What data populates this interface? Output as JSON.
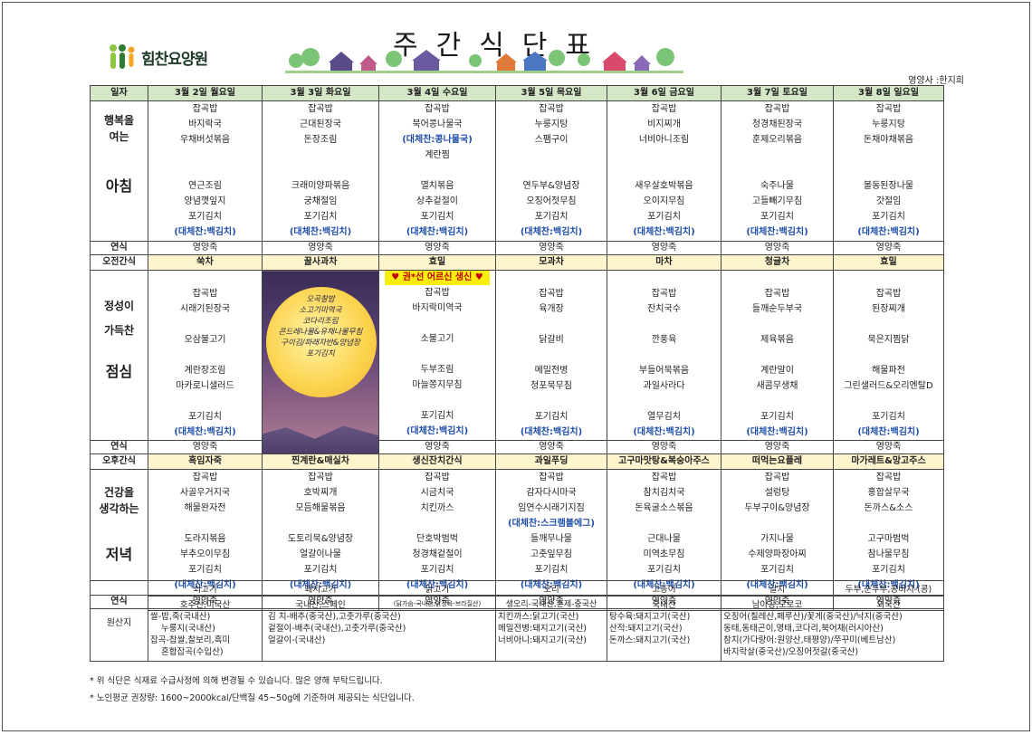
{
  "header": {
    "title": "주간식단표",
    "logo_text": "힘찬요양원",
    "dietitian": "영양사 :한지희"
  },
  "days": [
    "3월 2일 월요일",
    "3월 3일 화요일",
    "3월 4일 수요일",
    "3월 5일 목요일",
    "3월 6일 금요일",
    "3월 7일 토요일",
    "3월 8일 일요일"
  ],
  "row_labels": {
    "date": "일자",
    "breakfast_slogan": [
      "행복을",
      "여는"
    ],
    "breakfast": "아침",
    "snack_porridge": "연식",
    "morning_snack": "오전간식",
    "lunch_slogan": [
      "정성이",
      "가득찬"
    ],
    "lunch": "점심",
    "afternoon_snack": "오후간식",
    "dinner_slogan": [
      "건강을",
      "생각하는"
    ],
    "dinner": "저녁"
  },
  "breakfast": [
    [
      "잡곡밥",
      "바지락국",
      "우채버섯볶음",
      "",
      "",
      "연근조림",
      "양념깻잎지",
      "포기김치",
      "(대체찬:백김치)"
    ],
    [
      "잡곡밥",
      "근대된장국",
      "돈장조림",
      "",
      "",
      "크래미양파볶음",
      "궁채절임",
      "포기김치",
      "(대체찬:백김치)"
    ],
    [
      "잡곡밥",
      "북어콩나물국",
      "(대체찬:콩나물국)",
      "계란찜",
      "",
      "멸치볶음",
      "상추겉절이",
      "포기김치",
      "(대체찬:백김치)"
    ],
    [
      "잡곡밥",
      "누룽지탕",
      "스팸구이",
      "",
      "",
      "연두부&양념장",
      "오징어젓무침",
      "포기김치",
      "(대체찬:백김치)"
    ],
    [
      "잡곡밥",
      "비지찌개",
      "너비아니조림",
      "",
      "",
      "새우살호박볶음",
      "오이지무침",
      "포기김치",
      "(대체찬:백김치)"
    ],
    [
      "잡곡밥",
      "청경채된장국",
      "훈제오리볶음",
      "",
      "",
      "숙주나물",
      "고들빼기무침",
      "포기김치",
      "(대체찬:백김치)"
    ],
    [
      "잡곡밥",
      "누룽지탕",
      "돈채야채볶음",
      "",
      "",
      "볼동된장나물",
      "갓절임",
      "포기김치",
      "(대체찬:백김치)"
    ]
  ],
  "porridge": "영양죽",
  "morning_snacks": [
    "쑥차",
    "꿀사과차",
    "효밀",
    "모과차",
    "마차",
    "청귤차",
    "효밀"
  ],
  "birthday_label": "권*선 어르신 생신",
  "special_lunch_art": [
    "오곡찰밥",
    "소고기미역국",
    "코다리조림",
    "콘드레나물&유채나물무침",
    "구이김/파래자반&양념장",
    "포기김치"
  ],
  "lunch": [
    [
      "",
      "잡곡밥",
      "시래기된장국",
      "",
      "오삼불고기",
      "",
      "계란장조림",
      "마카로니샐러드",
      "",
      "포기김치",
      "(대체찬:백김치)"
    ],
    null,
    [
      "",
      "잡곡밥",
      "바지락미역국",
      "",
      "소불고기",
      "",
      "두부조림",
      "마늘쫑지무침",
      "",
      "포기김치",
      "(대체찬:백김치)"
    ],
    [
      "",
      "잡곡밥",
      "육개장",
      "",
      "닭갈비",
      "",
      "메밀전병",
      "청포묵무침",
      "",
      "포기김치",
      "(대체찬:백김치)"
    ],
    [
      "",
      "잡곡밥",
      "잔치국수",
      "",
      "깐풍육",
      "",
      "부들어묵볶음",
      "과일사라다",
      "",
      "열무김치",
      "(대체찬:백김치)"
    ],
    [
      "",
      "잡곡밥",
      "들깨순두부국",
      "",
      "제육볶음",
      "",
      "계란말이",
      "새콤무생채",
      "",
      "포기김치",
      "(대체찬:백김치)"
    ],
    [
      "",
      "잡곡밥",
      "된장찌개",
      "",
      "묵은지찜닭",
      "",
      "해물파전",
      "그린샐러드&오리엔탈D",
      "",
      "포기김치",
      "(대체찬:백김치)"
    ]
  ],
  "afternoon_snacks": [
    "흑임자죽",
    "찐계란&매실차",
    "생신잔치간식",
    "과일푸딩",
    "고구마맛탕&복숭아주스",
    "떠먹는요플레",
    "마가레트&망고주스"
  ],
  "dinner": [
    [
      "잡곡밥",
      "사골우거지국",
      "해물완자전",
      "",
      "도라지볶음",
      "부추오이무침",
      "포기김치",
      "(대체찬:백김치)"
    ],
    [
      "잡곡밥",
      "호박찌개",
      "모듬해물볶음",
      "",
      "도토리묵&양념장",
      "얼갈이나물",
      "포기김치",
      "(대체찬:백김치)"
    ],
    [
      "잡곡밥",
      "시금치국",
      "치킨까스",
      "",
      "단호박범벅",
      "청경채겉절이",
      "포기김치",
      "(대체찬:백김치)"
    ],
    [
      "잡곡밥",
      "감자다시마국",
      "임연수시래기지짐",
      "(대체찬:스크램블에그)",
      "들깨무나물",
      "고춧잎무침",
      "포기김치",
      "(대체찬:백김치)"
    ],
    [
      "잡곡밥",
      "참치김치국",
      "돈육굴소스볶음",
      "",
      "근대나물",
      "미역초무침",
      "포기김치",
      "(대체찬:백김치)"
    ],
    [
      "잡곡밥",
      "설렁탕",
      "두부구이&양념장",
      "",
      "가지나물",
      "수제양파장아찌",
      "포기김치",
      "(대체찬:백김치)"
    ],
    [
      "잡곡밥",
      "홍합살무국",
      "돈까스&소스",
      "",
      "고구마범벅",
      "참나물무침",
      "포기김치",
      "(대체찬:백김치)"
    ]
  ],
  "origin": {
    "label": "원산지",
    "items": [
      "쇠고기",
      "돼지고기",
      "닭고기",
      "오리",
      "고등어",
      "갈치",
      "두부,순두부,콩비지-(콩)"
    ],
    "countries": [
      "호주산,미국산",
      "국내산,스페인",
      "(닭가슴-국내산,닭정육-브라질산)",
      "생오리-국내산,훈제-중국산",
      "국내산",
      "남아공,모로코",
      "외국산"
    ],
    "details": [
      [
        "쌀-밥,죽(국내산)",
        "누룽지(국내산)",
        "잡곡-찹쌀,찰보리,흑미",
        "혼합잡곡(수입산)"
      ],
      [
        "김  치-배추(중국산),고춧가루(중국산)",
        "겉절이-배추(국내산),고춧가루(중국산)",
        "얼갈이-(국내산)",
        ""
      ],
      [
        "치킨까스:닭고기(국산)",
        "메밀전병:돼지고기(국산)",
        "너비아니:돼지고기(국산)",
        ""
      ],
      [
        "탕수육:돼지고기(국산)",
        "산적:돼지고기(국산)",
        "돈까스:돼지고기(국산)",
        ""
      ],
      [
        "오징어(칠레산,페루산)/꽃게(중국산)/낙지(중국산)",
        "동태,동태곤이,명태,코다리,북어채(러시아산)",
        "참치(가다랑어:원양산,태평양)/쭈꾸미(베트남산)",
        "바지락살(중국산)/오징어젓갈(중국산)"
      ]
    ]
  },
  "notes": [
    "* 위 식단은 식재료 수급사정에 의해 변경될 수 있습니다. 많은 양해 부탁드립니다.",
    "* 노인평균 권장량: 1600~2000kcal/단백질 45~50g에 기준하여 제공되는 식단입니다."
  ]
}
